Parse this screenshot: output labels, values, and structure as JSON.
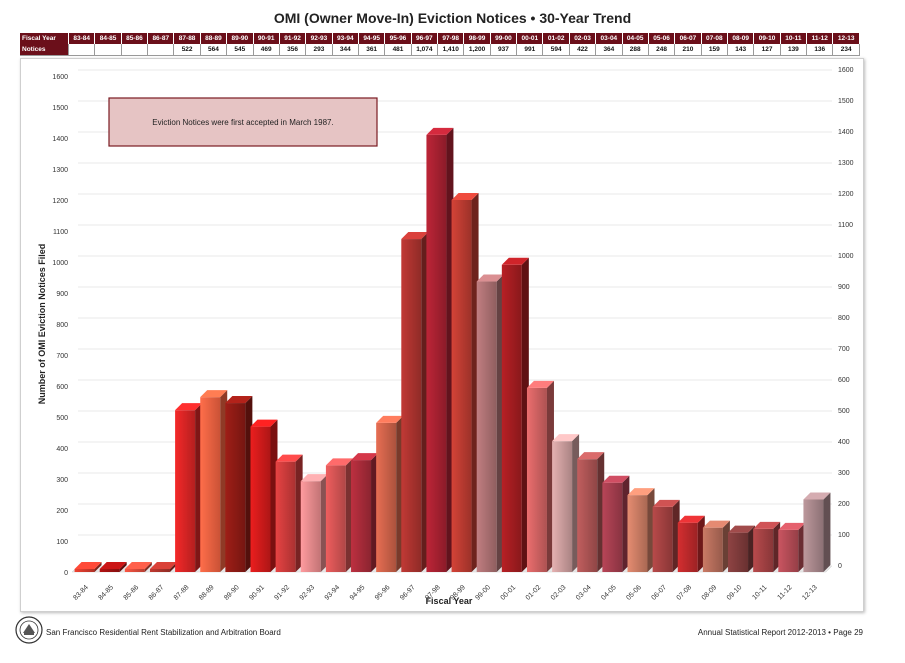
{
  "header": {
    "title": "OMI (Owner Move-In) Eviction Notices • 30-Year Trend"
  },
  "summary_table": {
    "row1_label": "Fiscal Year",
    "row2_label": "Notices",
    "years": [
      "83-84",
      "84-85",
      "85-86",
      "86-87",
      "87-88",
      "88-89",
      "89-90",
      "90-91",
      "91-92",
      "92-93",
      "93-94",
      "94-95",
      "95-96",
      "96-97",
      "97-98",
      "98-99",
      "99-00",
      "00-01",
      "01-02",
      "02-03",
      "03-04",
      "04-05",
      "05-06",
      "06-07",
      "07-08",
      "08-09",
      "09-10",
      "10-11",
      "11-12",
      "12-13"
    ],
    "notices": [
      "",
      "",
      "",
      "",
      "522",
      "564",
      "545",
      "469",
      "356",
      "293",
      "344",
      "361",
      "481",
      "1,074",
      "1,410",
      "1,200",
      "937",
      "991",
      "594",
      "422",
      "364",
      "288",
      "248",
      "210",
      "159",
      "143",
      "127",
      "139",
      "136",
      "234"
    ]
  },
  "chart_data": {
    "type": "bar",
    "title": "",
    "xlabel": "Fiscal Year",
    "ylabel": "Number of OMI Eviction Notices Filed",
    "ylim": [
      0,
      1600
    ],
    "yticks": [
      0,
      100,
      200,
      300,
      400,
      500,
      600,
      700,
      800,
      900,
      1000,
      1100,
      1200,
      1300,
      1400,
      1500,
      1600
    ],
    "grid": true,
    "categories": [
      "83-84",
      "84-85",
      "85-86",
      "86-87",
      "87-88",
      "88-89",
      "89-90",
      "90-91",
      "91-92",
      "92-93",
      "93-94",
      "94-95",
      "95-96",
      "96-97",
      "97-98",
      "98-99",
      "99-00",
      "00-01",
      "01-02",
      "02-03",
      "03-04",
      "04-05",
      "05-06",
      "06-07",
      "07-08",
      "08-09",
      "09-10",
      "10-11",
      "11-12",
      "12-13"
    ],
    "values": [
      0,
      0,
      0,
      0,
      522,
      564,
      545,
      469,
      356,
      293,
      344,
      361,
      481,
      1074,
      1410,
      1200,
      937,
      991,
      594,
      422,
      364,
      288,
      248,
      210,
      159,
      143,
      127,
      139,
      136,
      234
    ],
    "bar_colors": [
      "#d0392b",
      "#9c1010",
      "#d94a3a",
      "#a8322a",
      "#d42424",
      "#ee6040",
      "#8a1a14",
      "#cc1a1a",
      "#c83a3a",
      "#e4888a",
      "#cf5252",
      "#a42a38",
      "#c96048",
      "#a8322e",
      "#a42030",
      "#b83a30",
      "#a86e70",
      "#a01c20",
      "#cc6060",
      "#c79a9a",
      "#a85252",
      "#a03c4c",
      "#c77a62",
      "#a04040",
      "#b8282a",
      "#b06a58",
      "#7c3a3a",
      "#a04042",
      "#b04a54",
      "#a48488"
    ],
    "annotation": "Eviction Notices were first accepted in March 1987."
  },
  "footer": {
    "left": "San Francisco Residential Rent Stabilization and Arbitration Board",
    "right": "Annual Statistical Report 2012-2013 • Page 29"
  }
}
